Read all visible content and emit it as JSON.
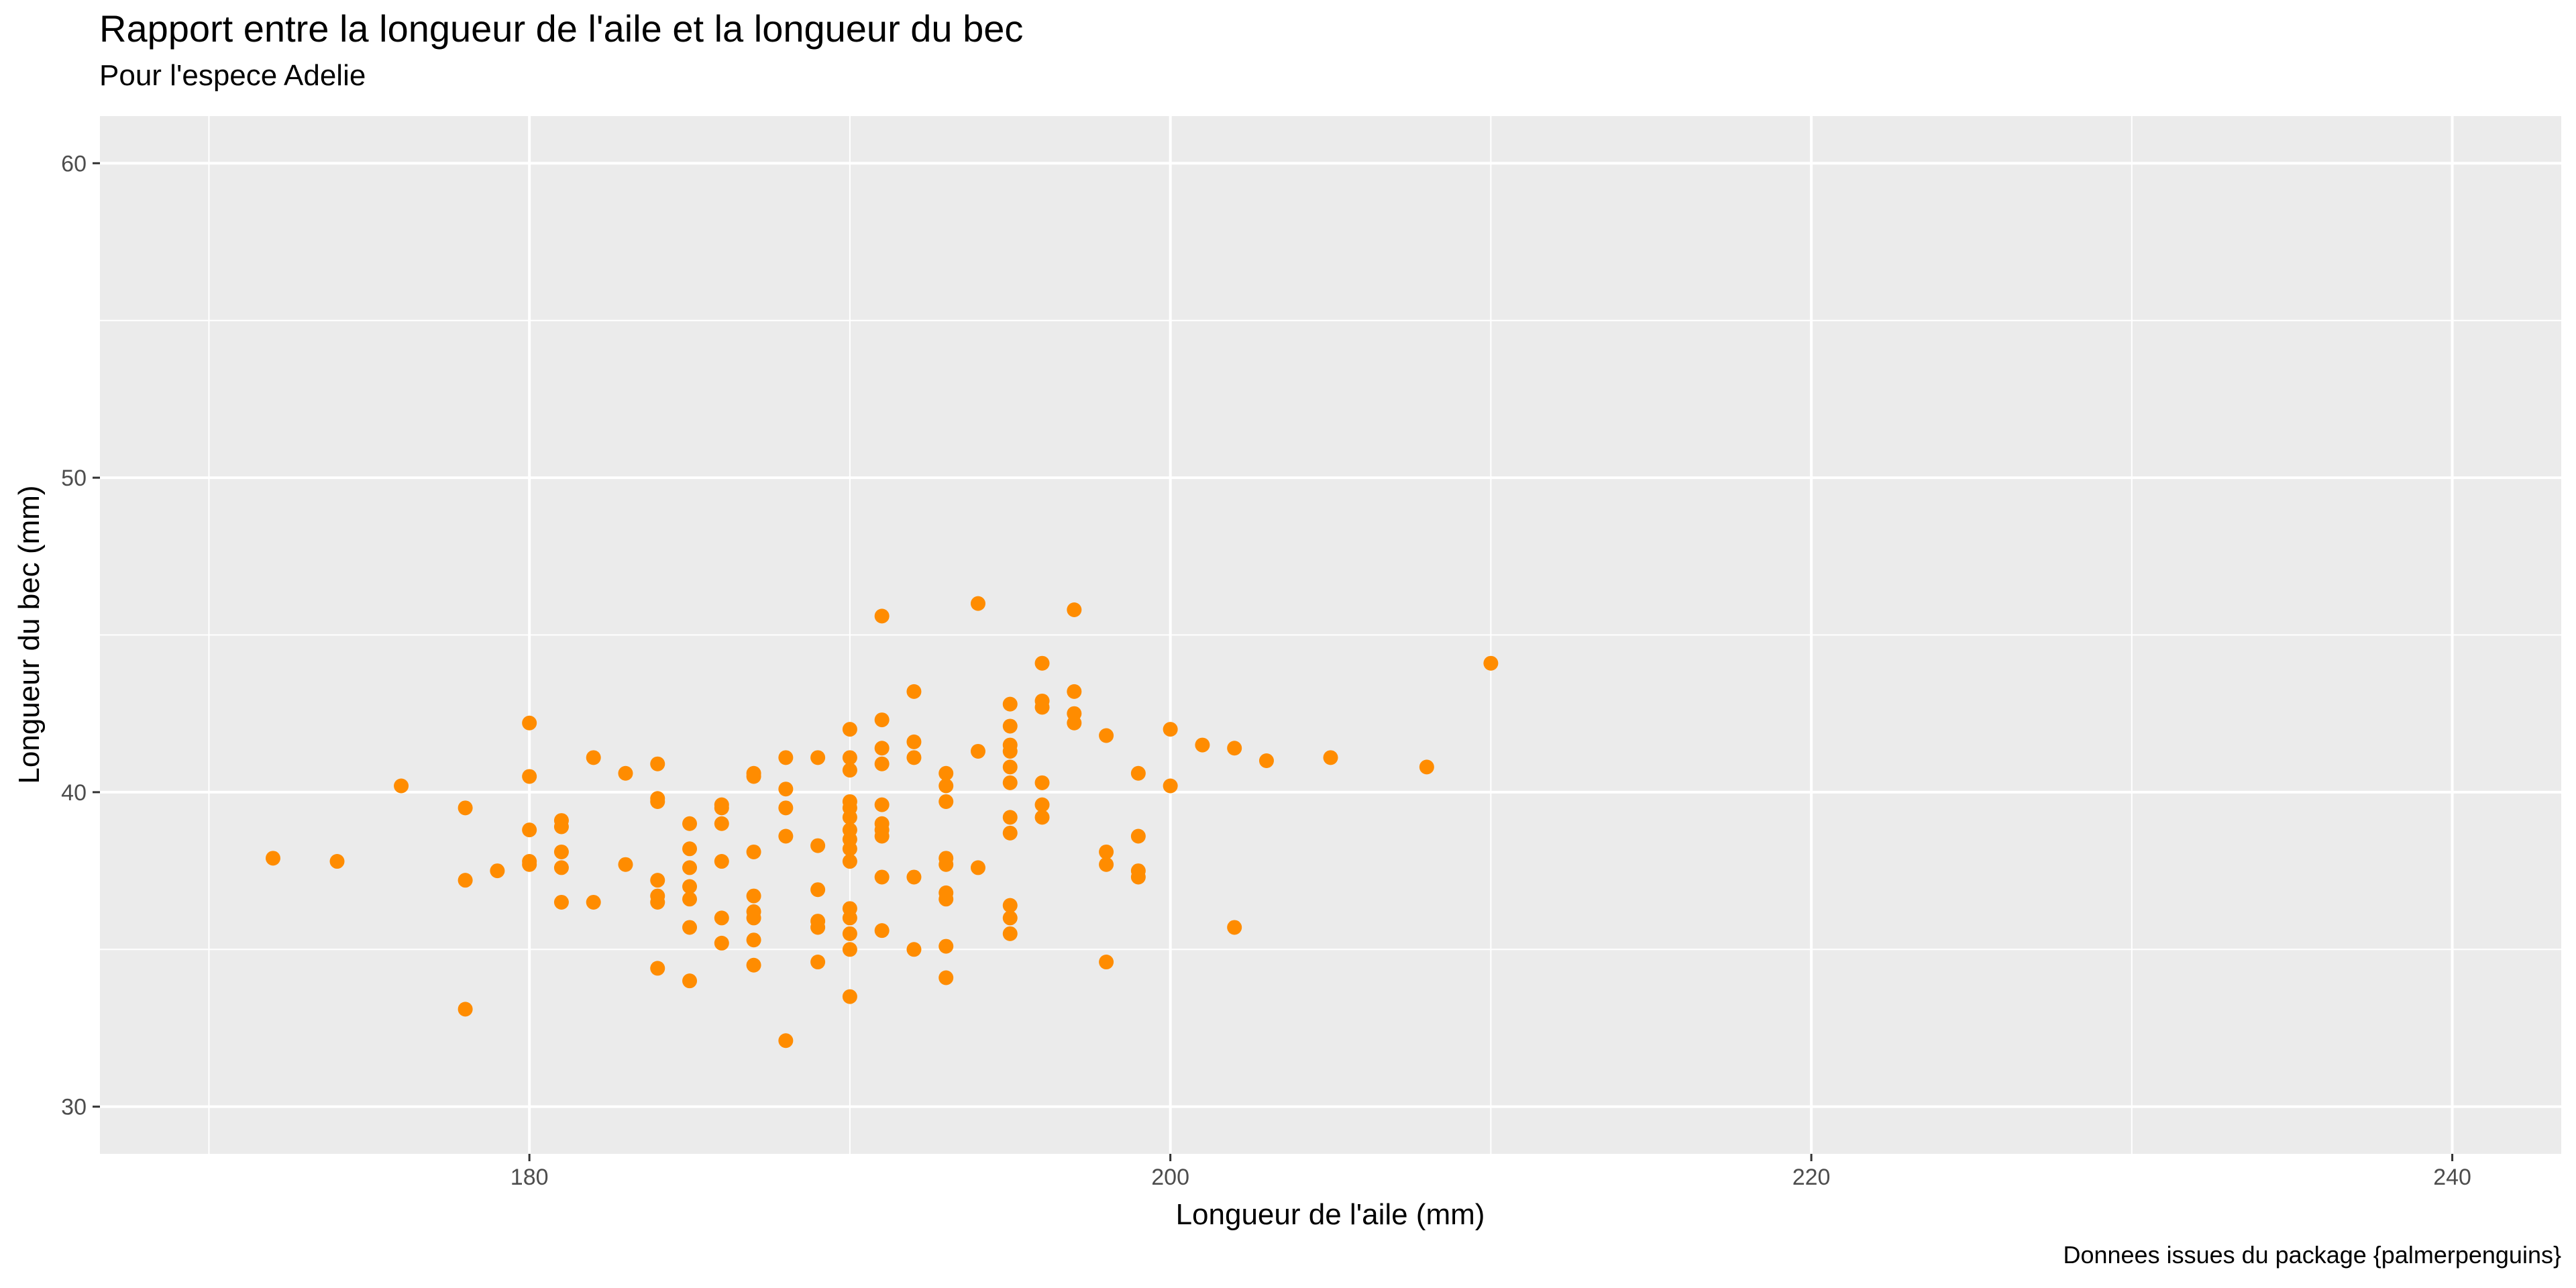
{
  "chart_data": {
    "type": "scatter",
    "title": "Rapport entre la longueur de l'aile et la longueur du bec",
    "subtitle": "Pour l'espece Adelie",
    "caption": "Donnees issues du package {palmerpenguins}",
    "xlabel": "Longueur de l'aile (mm)",
    "ylabel": "Longueur du bec (mm)",
    "xlim": [
      166.6,
      243.4
    ],
    "ylim": [
      28.5,
      61.5
    ],
    "xticks": [
      180,
      200,
      220,
      240
    ],
    "yticks": [
      30,
      40,
      50,
      60
    ],
    "grid": true,
    "point_color": "#FF8C00",
    "panel_color": "#EBEBEB",
    "points": [
      [
        172,
        37.9
      ],
      [
        174,
        37.8
      ],
      [
        176,
        40.2
      ],
      [
        178,
        39.5
      ],
      [
        178,
        37.2
      ],
      [
        178,
        33.1
      ],
      [
        179,
        37.5
      ],
      [
        180,
        42.2
      ],
      [
        180,
        40.5
      ],
      [
        180,
        38.8
      ],
      [
        180,
        37.8
      ],
      [
        180,
        37.7
      ],
      [
        181,
        39.1
      ],
      [
        181,
        38.9
      ],
      [
        181,
        38.1
      ],
      [
        181,
        37.6
      ],
      [
        181,
        36.5
      ],
      [
        182,
        41.1
      ],
      [
        182,
        36.5
      ],
      [
        183,
        40.6
      ],
      [
        183,
        37.7
      ],
      [
        184,
        40.9
      ],
      [
        184,
        39.8
      ],
      [
        184,
        39.7
      ],
      [
        184,
        37.2
      ],
      [
        184,
        36.7
      ],
      [
        184,
        36.5
      ],
      [
        184,
        34.4
      ],
      [
        185,
        39.0
      ],
      [
        185,
        38.2
      ],
      [
        185,
        37.6
      ],
      [
        185,
        37.0
      ],
      [
        185,
        36.6
      ],
      [
        185,
        35.7
      ],
      [
        185,
        34.0
      ],
      [
        186,
        39.6
      ],
      [
        186,
        39.5
      ],
      [
        186,
        39.0
      ],
      [
        186,
        37.8
      ],
      [
        186,
        36.0
      ],
      [
        186,
        35.2
      ],
      [
        187,
        40.6
      ],
      [
        187,
        40.5
      ],
      [
        187,
        38.1
      ],
      [
        187,
        36.7
      ],
      [
        187,
        36.2
      ],
      [
        187,
        36.0
      ],
      [
        187,
        35.3
      ],
      [
        187,
        34.5
      ],
      [
        188,
        41.1
      ],
      [
        188,
        40.1
      ],
      [
        188,
        39.5
      ],
      [
        188,
        38.6
      ],
      [
        188,
        32.1
      ],
      [
        189,
        41.1
      ],
      [
        189,
        38.3
      ],
      [
        189,
        36.9
      ],
      [
        189,
        35.9
      ],
      [
        189,
        35.7
      ],
      [
        189,
        34.6
      ],
      [
        190,
        42.0
      ],
      [
        190,
        41.1
      ],
      [
        190,
        40.7
      ],
      [
        190,
        39.7
      ],
      [
        190,
        39.5
      ],
      [
        190,
        39.2
      ],
      [
        190,
        38.8
      ],
      [
        190,
        38.5
      ],
      [
        190,
        38.2
      ],
      [
        190,
        37.8
      ],
      [
        190,
        36.3
      ],
      [
        190,
        36.0
      ],
      [
        190,
        35.5
      ],
      [
        190,
        35.0
      ],
      [
        190,
        33.5
      ],
      [
        191,
        45.6
      ],
      [
        191,
        42.3
      ],
      [
        191,
        41.4
      ],
      [
        191,
        40.9
      ],
      [
        191,
        39.6
      ],
      [
        191,
        39.0
      ],
      [
        191,
        38.8
      ],
      [
        191,
        38.6
      ],
      [
        191,
        37.3
      ],
      [
        191,
        35.6
      ],
      [
        192,
        43.2
      ],
      [
        192,
        41.6
      ],
      [
        192,
        41.1
      ],
      [
        192,
        37.3
      ],
      [
        192,
        35.0
      ],
      [
        193,
        40.6
      ],
      [
        193,
        40.2
      ],
      [
        193,
        39.7
      ],
      [
        193,
        37.9
      ],
      [
        193,
        37.7
      ],
      [
        193,
        36.8
      ],
      [
        193,
        36.6
      ],
      [
        193,
        35.1
      ],
      [
        193,
        34.1
      ],
      [
        194,
        46.0
      ],
      [
        194,
        41.3
      ],
      [
        194,
        37.6
      ],
      [
        195,
        42.8
      ],
      [
        195,
        42.1
      ],
      [
        195,
        41.5
      ],
      [
        195,
        41.3
      ],
      [
        195,
        40.8
      ],
      [
        195,
        40.3
      ],
      [
        195,
        39.2
      ],
      [
        195,
        38.7
      ],
      [
        195,
        36.4
      ],
      [
        195,
        36.0
      ],
      [
        195,
        35.5
      ],
      [
        196,
        44.1
      ],
      [
        196,
        42.9
      ],
      [
        196,
        42.7
      ],
      [
        196,
        40.3
      ],
      [
        196,
        39.6
      ],
      [
        196,
        39.2
      ],
      [
        197,
        45.8
      ],
      [
        197,
        43.2
      ],
      [
        197,
        42.5
      ],
      [
        197,
        42.2
      ],
      [
        198,
        41.8
      ],
      [
        198,
        38.1
      ],
      [
        198,
        37.7
      ],
      [
        198,
        34.6
      ],
      [
        199,
        40.6
      ],
      [
        199,
        38.6
      ],
      [
        199,
        37.5
      ],
      [
        199,
        37.3
      ],
      [
        200,
        42.0
      ],
      [
        200,
        40.2
      ],
      [
        201,
        41.5
      ],
      [
        202,
        41.4
      ],
      [
        202,
        35.7
      ],
      [
        203,
        41.0
      ],
      [
        205,
        41.1
      ],
      [
        208,
        40.8
      ],
      [
        210,
        44.1
      ]
    ]
  }
}
